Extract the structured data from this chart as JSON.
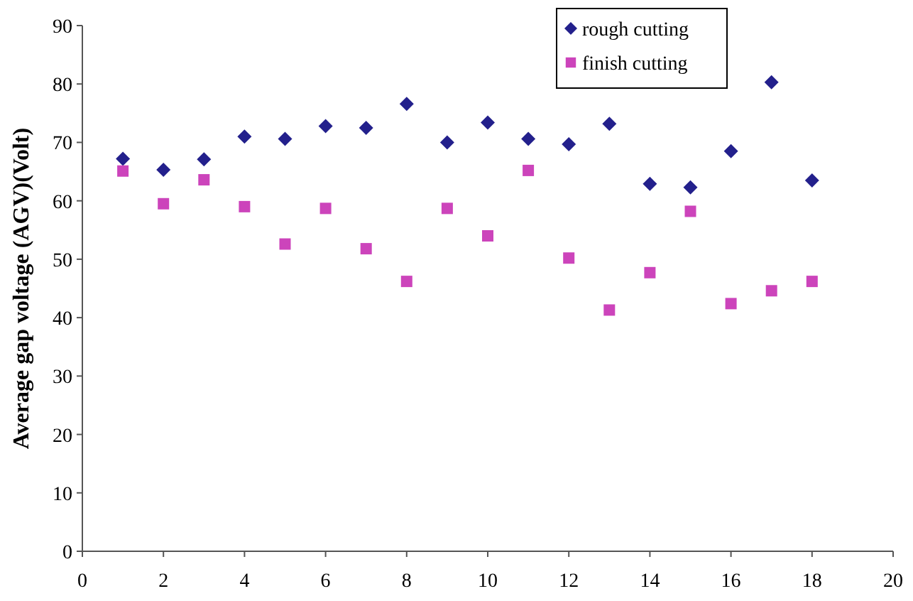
{
  "chart_data": {
    "type": "scatter",
    "ylabel": "Average gap voltage (AGV)(Volt)",
    "x": [
      1,
      2,
      3,
      4,
      5,
      6,
      7,
      8,
      9,
      10,
      11,
      12,
      13,
      14,
      15,
      16,
      17,
      18
    ],
    "xlim": [
      0,
      20
    ],
    "xticks": [
      0,
      2,
      4,
      6,
      8,
      10,
      12,
      14,
      16,
      18,
      20
    ],
    "ylim": [
      0,
      90
    ],
    "yticks": [
      0,
      10,
      20,
      30,
      40,
      50,
      60,
      70,
      80,
      90
    ],
    "grid": false,
    "legend": "top right",
    "series": [
      {
        "name": "rough cutting",
        "color": "#23208c",
        "marker": "diamond",
        "values": [
          67.2,
          65.3,
          67.1,
          71,
          70.6,
          72.8,
          72.5,
          76.6,
          70,
          73.4,
          70.6,
          69.7,
          73.2,
          62.9,
          62.3,
          68.5,
          80.3,
          63.5
        ]
      },
      {
        "name": "finish cutting",
        "color": "#cc44bb",
        "marker": "square",
        "values": [
          65.1,
          59.5,
          63.6,
          59,
          52.6,
          58.7,
          51.8,
          46.2,
          58.7,
          54,
          65.2,
          50.2,
          41.3,
          47.7,
          58.2,
          42.4,
          44.6,
          46.2
        ]
      }
    ]
  }
}
